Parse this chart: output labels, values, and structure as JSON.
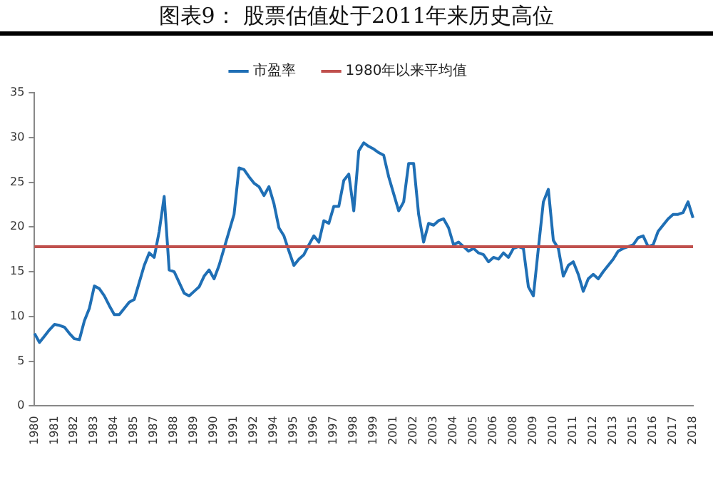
{
  "chart_data": {
    "type": "line",
    "title": "图表9： 股票估值处于2011年来历史高位",
    "categories": [
      "1980",
      null,
      null,
      null,
      "1981",
      null,
      null,
      null,
      "1982",
      null,
      null,
      null,
      "1983",
      null,
      null,
      null,
      "1984",
      null,
      null,
      null,
      "1985",
      null,
      null,
      null,
      "1987",
      null,
      null,
      null,
      "1988",
      null,
      null,
      null,
      "1989",
      null,
      null,
      null,
      "1990",
      null,
      null,
      null,
      "1991",
      null,
      null,
      null,
      "1992",
      null,
      null,
      null,
      "1994",
      null,
      null,
      null,
      "1995",
      null,
      null,
      null,
      "1996",
      null,
      null,
      null,
      "1997",
      null,
      null,
      null,
      "1998",
      null,
      null,
      null,
      "1999",
      null,
      null,
      null,
      "2001",
      null,
      null,
      null,
      "2002",
      null,
      null,
      null,
      "2003",
      null,
      null,
      null,
      "2004",
      null,
      null,
      null,
      "2005",
      null,
      null,
      null,
      "2006",
      null,
      null,
      null,
      "2008",
      null,
      null,
      null,
      "2009",
      null,
      null,
      null,
      "2010",
      null,
      null,
      null,
      "2011",
      null,
      null,
      null,
      "2012",
      null,
      null,
      null,
      "2013",
      null,
      null,
      null,
      "2015",
      null,
      null,
      null,
      "2016",
      null,
      null,
      null,
      "2017",
      null,
      null,
      null,
      "2018"
    ],
    "series": [
      {
        "name": "市盈率",
        "color": "#1f6fb5",
        "values": [
          8.1,
          7.1,
          7.8,
          8.5,
          9.1,
          9.0,
          8.8,
          8.1,
          7.5,
          7.4,
          9.5,
          10.9,
          13.4,
          13.1,
          12.3,
          11.2,
          10.2,
          10.2,
          10.9,
          11.6,
          11.9,
          13.8,
          15.7,
          17.1,
          16.6,
          19.5,
          23.4,
          15.2,
          15.0,
          13.8,
          12.6,
          12.3,
          12.8,
          13.3,
          14.5,
          15.2,
          14.2,
          15.7,
          17.6,
          19.5,
          21.4,
          26.6,
          26.4,
          25.6,
          24.9,
          24.5,
          23.5,
          24.5,
          22.6,
          19.9,
          19.0,
          17.3,
          15.7,
          16.4,
          16.9,
          18.0,
          19.0,
          18.3,
          20.7,
          20.4,
          22.3,
          22.3,
          25.2,
          25.9,
          21.8,
          28.5,
          29.4,
          29.0,
          28.7,
          28.3,
          28.0,
          25.6,
          23.7,
          21.8,
          22.8,
          27.1,
          27.1,
          21.4,
          18.3,
          20.4,
          20.2,
          20.7,
          20.9,
          19.9,
          18.0,
          18.3,
          17.8,
          17.3,
          17.6,
          17.1,
          16.9,
          16.1,
          16.6,
          16.4,
          17.1,
          16.6,
          17.6,
          17.8,
          17.6,
          13.3,
          12.3,
          17.6,
          22.8,
          24.2,
          18.5,
          17.6,
          14.5,
          15.7,
          16.1,
          14.7,
          12.8,
          14.2,
          14.7,
          14.2,
          15.0,
          15.7,
          16.4,
          17.3,
          17.6,
          17.8,
          18.0,
          18.8,
          19.0,
          17.8,
          18.0,
          19.5,
          20.2,
          20.9,
          21.4,
          21.4,
          21.6,
          22.8,
          21.0
        ]
      }
    ],
    "ref_lines": [
      {
        "axis": "y",
        "value": 17.8,
        "label": "1980年以来平均值",
        "color": "#c0504d"
      }
    ],
    "ylim": [
      0,
      35
    ],
    "yticks": [
      0,
      5,
      10,
      15,
      20,
      25,
      30,
      35
    ],
    "grid": false,
    "legend": "top",
    "marker": "none",
    "line_style": "solid"
  }
}
